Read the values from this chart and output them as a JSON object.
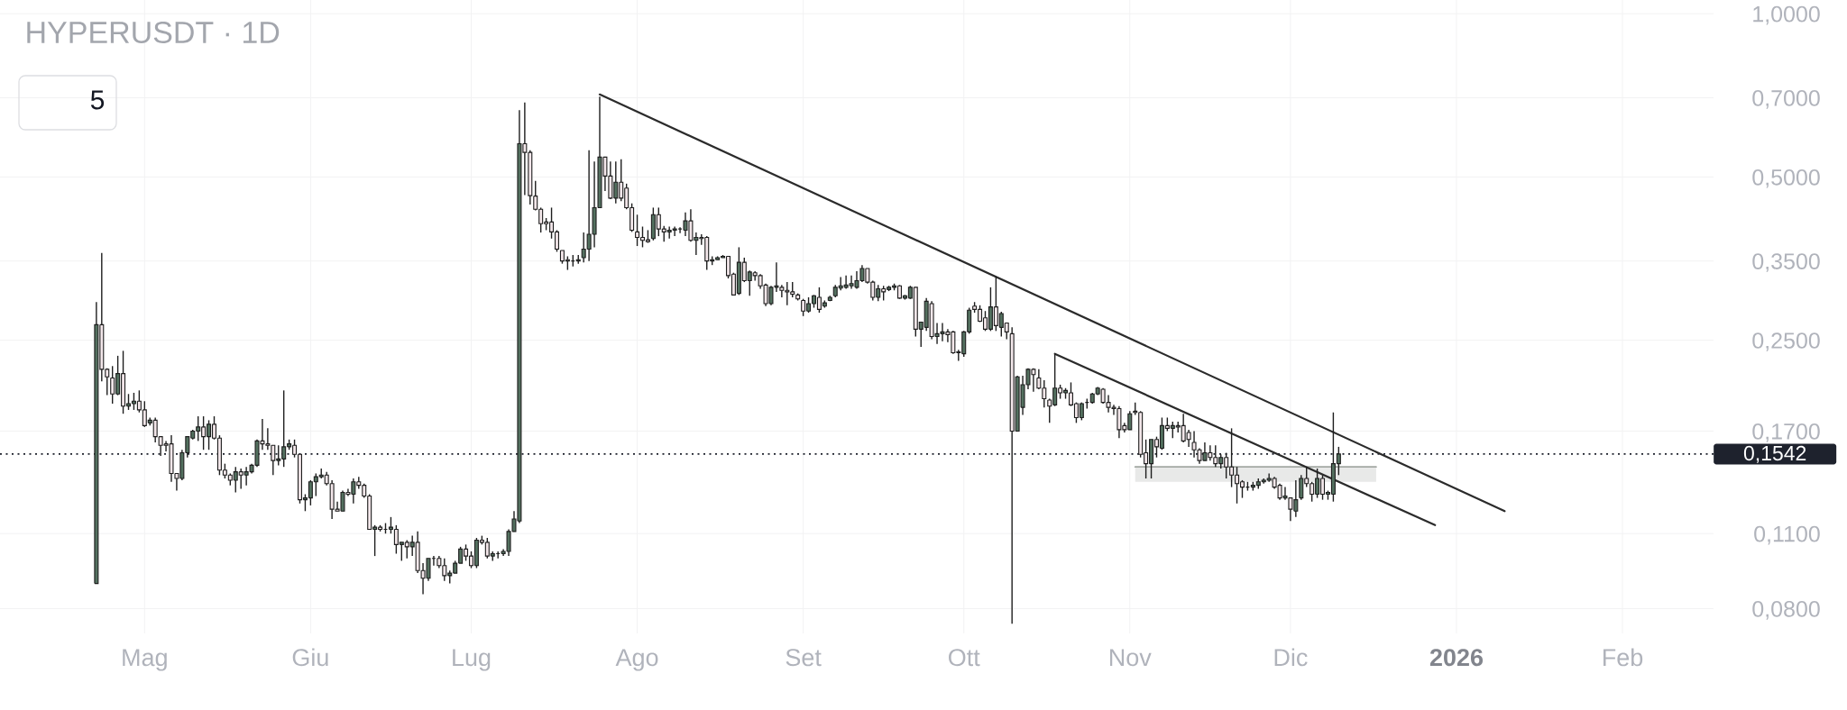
{
  "chart_data": {
    "type": "candlestick",
    "title": "HYPERUSDT · 1D",
    "annotations": [
      "5"
    ],
    "log": true,
    "grid": true,
    "xlim": [
      "2025-04-04",
      "2026-02-18"
    ],
    "ylim": [
      0.072,
      1.06
    ],
    "xticks": [
      {
        "value": "2025-05-01",
        "label": "Mag"
      },
      {
        "value": "2025-06-01",
        "label": "Giu"
      },
      {
        "value": "2025-07-01",
        "label": "Lug"
      },
      {
        "value": "2025-08-01",
        "label": "Ago"
      },
      {
        "value": "2025-09-01",
        "label": "Set"
      },
      {
        "value": "2025-10-01",
        "label": "Ott"
      },
      {
        "value": "2025-11-01",
        "label": "Nov"
      },
      {
        "value": "2025-12-01",
        "label": "Dic"
      },
      {
        "value": "2026-01-01",
        "label": "2026"
      },
      {
        "value": "2026-02-01",
        "label": "Feb"
      }
    ],
    "yticks": [
      {
        "value": 0.08,
        "label": "0,0800"
      },
      {
        "value": 0.11,
        "label": "0,1100"
      },
      {
        "value": 0.17,
        "label": "0,1700"
      },
      {
        "value": 0.25,
        "label": "0,2500"
      },
      {
        "value": 0.35,
        "label": "0,3500"
      },
      {
        "value": 0.5,
        "label": "0,5000"
      },
      {
        "value": 0.7,
        "label": "0,7000"
      },
      {
        "value": 1.0,
        "label": "1,0000"
      }
    ],
    "ref_lines": [
      {
        "axis": "y",
        "value": 0.1542,
        "label": "0,1542",
        "color": "#1e222d",
        "line_style": "dotted"
      }
    ],
    "series": [
      {
        "color": "#1e1e1e",
        "x": [
          "2025-04-22",
          "2025-04-23",
          "2025-04-24",
          "2025-04-25",
          "2025-04-26",
          "2025-04-27",
          "2025-04-28",
          "2025-04-29",
          "2025-04-30",
          "2025-05-01",
          "2025-05-02",
          "2025-05-03",
          "2025-05-04",
          "2025-05-05",
          "2025-05-06",
          "2025-05-07",
          "2025-05-08",
          "2025-05-09",
          "2025-05-10",
          "2025-05-11",
          "2025-05-12",
          "2025-05-13",
          "2025-05-14",
          "2025-05-15",
          "2025-05-16",
          "2025-05-17",
          "2025-05-18",
          "2025-05-19",
          "2025-05-20",
          "2025-05-21",
          "2025-05-22",
          "2025-05-23",
          "2025-05-24",
          "2025-05-25",
          "2025-05-26",
          "2025-05-27",
          "2025-05-28",
          "2025-05-29",
          "2025-05-30",
          "2025-05-31",
          "2025-06-01",
          "2025-06-02",
          "2025-06-03",
          "2025-06-04",
          "2025-06-05",
          "2025-06-06",
          "2025-06-07",
          "2025-06-08",
          "2025-06-09",
          "2025-06-10",
          "2025-06-11",
          "2025-06-12",
          "2025-06-13",
          "2025-06-14",
          "2025-06-15",
          "2025-06-16",
          "2025-06-17",
          "2025-06-18",
          "2025-06-19",
          "2025-06-20",
          "2025-06-21",
          "2025-06-22",
          "2025-06-23",
          "2025-06-24",
          "2025-06-25",
          "2025-06-26",
          "2025-06-27",
          "2025-06-28",
          "2025-06-29",
          "2025-06-30",
          "2025-07-01",
          "2025-07-02",
          "2025-07-03",
          "2025-07-04",
          "2025-07-05",
          "2025-07-06",
          "2025-07-07",
          "2025-07-08",
          "2025-07-09",
          "2025-07-10",
          "2025-07-11",
          "2025-07-12",
          "2025-07-13",
          "2025-07-14",
          "2025-07-15",
          "2025-07-16",
          "2025-07-17",
          "2025-07-18",
          "2025-07-19",
          "2025-07-20",
          "2025-07-21",
          "2025-07-22",
          "2025-07-23",
          "2025-07-24",
          "2025-07-25",
          "2025-07-26",
          "2025-07-27",
          "2025-07-28",
          "2025-07-29",
          "2025-07-30",
          "2025-07-31",
          "2025-08-01",
          "2025-08-02",
          "2025-08-03",
          "2025-08-04",
          "2025-08-05",
          "2025-08-06",
          "2025-08-07",
          "2025-08-08",
          "2025-08-09",
          "2025-08-10",
          "2025-08-11",
          "2025-08-12",
          "2025-08-13",
          "2025-08-14",
          "2025-08-15",
          "2025-08-16",
          "2025-08-17",
          "2025-08-18",
          "2025-08-19",
          "2025-08-20",
          "2025-08-21",
          "2025-08-22",
          "2025-08-23",
          "2025-08-24",
          "2025-08-25",
          "2025-08-26",
          "2025-08-27",
          "2025-08-28",
          "2025-08-29",
          "2025-08-30",
          "2025-08-31",
          "2025-09-01",
          "2025-09-02",
          "2025-09-03",
          "2025-09-04",
          "2025-09-05",
          "2025-09-06",
          "2025-09-07",
          "2025-09-08",
          "2025-09-09",
          "2025-09-10",
          "2025-09-11",
          "2025-09-12",
          "2025-09-13",
          "2025-09-14",
          "2025-09-15",
          "2025-09-16",
          "2025-09-17",
          "2025-09-18",
          "2025-09-19",
          "2025-09-20",
          "2025-09-21",
          "2025-09-22",
          "2025-09-23",
          "2025-09-24",
          "2025-09-25",
          "2025-09-26",
          "2025-09-27",
          "2025-09-28",
          "2025-09-29",
          "2025-09-30",
          "2025-10-01",
          "2025-10-02",
          "2025-10-03",
          "2025-10-04",
          "2025-10-05",
          "2025-10-06",
          "2025-10-07",
          "2025-10-08",
          "2025-10-09",
          "2025-10-10",
          "2025-10-11",
          "2025-10-12",
          "2025-10-13",
          "2025-10-14",
          "2025-10-15",
          "2025-10-16",
          "2025-10-17",
          "2025-10-18",
          "2025-10-19",
          "2025-10-20",
          "2025-10-21",
          "2025-10-22",
          "2025-10-23",
          "2025-10-24",
          "2025-10-25",
          "2025-10-26",
          "2025-10-27",
          "2025-10-28",
          "2025-10-29",
          "2025-10-30",
          "2025-10-31",
          "2025-11-01",
          "2025-11-02",
          "2025-11-03",
          "2025-11-04",
          "2025-11-05",
          "2025-11-06",
          "2025-11-07",
          "2025-11-08",
          "2025-11-09",
          "2025-11-10",
          "2025-11-11",
          "2025-11-12",
          "2025-11-13",
          "2025-11-14",
          "2025-11-15",
          "2025-11-16",
          "2025-11-17",
          "2025-11-18",
          "2025-11-19",
          "2025-11-20",
          "2025-11-21",
          "2025-11-22",
          "2025-11-23",
          "2025-11-24",
          "2025-11-25",
          "2025-11-26",
          "2025-11-27",
          "2025-11-28",
          "2025-11-29",
          "2025-11-30",
          "2025-12-01",
          "2025-12-02",
          "2025-12-03",
          "2025-12-04",
          "2025-12-05",
          "2025-12-06",
          "2025-12-07",
          "2025-12-08",
          "2025-12-09",
          "2025-12-10"
        ],
        "ohlc": [
          [
            0.089,
            0.294,
            0.089,
            0.267
          ],
          [
            0.267,
            0.362,
            0.21,
            0.221
          ],
          [
            0.221,
            0.222,
            0.198,
            0.214
          ],
          [
            0.213,
            0.224,
            0.191,
            0.199
          ],
          [
            0.199,
            0.234,
            0.198,
            0.217
          ],
          [
            0.217,
            0.239,
            0.183,
            0.189
          ],
          [
            0.189,
            0.199,
            0.186,
            0.191
          ],
          [
            0.191,
            0.2,
            0.186,
            0.193
          ],
          [
            0.193,
            0.202,
            0.184,
            0.186
          ],
          [
            0.186,
            0.193,
            0.173,
            0.174
          ],
          [
            0.176,
            0.18,
            0.174,
            0.178
          ],
          [
            0.178,
            0.18,
            0.162,
            0.166
          ],
          [
            0.166,
            0.166,
            0.153,
            0.16
          ],
          [
            0.161,
            0.163,
            0.156,
            0.16
          ],
          [
            0.161,
            0.167,
            0.137,
            0.142
          ],
          [
            0.142,
            0.142,
            0.132,
            0.139
          ],
          [
            0.139,
            0.157,
            0.138,
            0.155
          ],
          [
            0.155,
            0.166,
            0.152,
            0.166
          ],
          [
            0.165,
            0.171,
            0.164,
            0.17
          ],
          [
            0.17,
            0.181,
            0.163,
            0.173
          ],
          [
            0.173,
            0.181,
            0.157,
            0.166
          ],
          [
            0.166,
            0.178,
            0.157,
            0.175
          ],
          [
            0.175,
            0.181,
            0.164,
            0.165
          ],
          [
            0.165,
            0.167,
            0.141,
            0.144
          ],
          [
            0.144,
            0.148,
            0.139,
            0.141
          ],
          [
            0.141,
            0.142,
            0.135,
            0.138
          ],
          [
            0.138,
            0.146,
            0.131,
            0.143
          ],
          [
            0.143,
            0.145,
            0.133,
            0.141
          ],
          [
            0.141,
            0.146,
            0.135,
            0.143
          ],
          [
            0.143,
            0.148,
            0.142,
            0.147
          ],
          [
            0.147,
            0.164,
            0.146,
            0.163
          ],
          [
            0.163,
            0.179,
            0.157,
            0.161
          ],
          [
            0.161,
            0.172,
            0.157,
            0.16
          ],
          [
            0.16,
            0.16,
            0.141,
            0.15
          ],
          [
            0.15,
            0.16,
            0.147,
            0.151
          ],
          [
            0.151,
            0.202,
            0.146,
            0.159
          ],
          [
            0.159,
            0.164,
            0.157,
            0.161
          ],
          [
            0.16,
            0.164,
            0.152,
            0.154
          ],
          [
            0.154,
            0.154,
            0.125,
            0.127
          ],
          [
            0.127,
            0.13,
            0.121,
            0.128
          ],
          [
            0.128,
            0.138,
            0.124,
            0.137
          ],
          [
            0.137,
            0.142,
            0.129,
            0.14
          ],
          [
            0.14,
            0.145,
            0.139,
            0.141
          ],
          [
            0.141,
            0.143,
            0.135,
            0.136
          ],
          [
            0.136,
            0.138,
            0.117,
            0.122
          ],
          [
            0.122,
            0.126,
            0.121,
            0.121
          ],
          [
            0.121,
            0.132,
            0.121,
            0.131
          ],
          [
            0.131,
            0.133,
            0.129,
            0.13
          ],
          [
            0.13,
            0.139,
            0.125,
            0.137
          ],
          [
            0.137,
            0.14,
            0.133,
            0.135
          ],
          [
            0.135,
            0.136,
            0.128,
            0.129
          ],
          [
            0.129,
            0.13,
            0.112,
            0.112
          ],
          [
            0.112,
            0.114,
            0.1,
            0.113
          ],
          [
            0.113,
            0.114,
            0.111,
            0.112
          ],
          [
            0.112,
            0.115,
            0.11,
            0.112
          ],
          [
            0.112,
            0.118,
            0.11,
            0.113
          ],
          [
            0.112,
            0.114,
            0.101,
            0.105
          ],
          [
            0.105,
            0.106,
            0.098,
            0.106
          ],
          [
            0.106,
            0.107,
            0.099,
            0.104
          ],
          [
            0.104,
            0.109,
            0.1,
            0.106
          ],
          [
            0.106,
            0.111,
            0.093,
            0.094
          ],
          [
            0.094,
            0.097,
            0.085,
            0.091
          ],
          [
            0.091,
            0.099,
            0.09,
            0.099
          ],
          [
            0.099,
            0.1,
            0.096,
            0.099
          ],
          [
            0.099,
            0.1,
            0.095,
            0.096
          ],
          [
            0.096,
            0.099,
            0.09,
            0.092
          ],
          [
            0.092,
            0.094,
            0.089,
            0.093
          ],
          [
            0.093,
            0.098,
            0.093,
            0.097
          ],
          [
            0.097,
            0.104,
            0.097,
            0.103
          ],
          [
            0.103,
            0.105,
            0.098,
            0.1
          ],
          [
            0.1,
            0.102,
            0.095,
            0.096
          ],
          [
            0.096,
            0.108,
            0.095,
            0.107
          ],
          [
            0.107,
            0.109,
            0.105,
            0.106
          ],
          [
            0.106,
            0.108,
            0.099,
            0.1
          ],
          [
            0.1,
            0.102,
            0.098,
            0.101
          ],
          [
            0.101,
            0.102,
            0.099,
            0.101
          ],
          [
            0.101,
            0.103,
            0.1,
            0.102
          ],
          [
            0.102,
            0.112,
            0.1,
            0.111
          ],
          [
            0.111,
            0.121,
            0.111,
            0.117
          ],
          [
            0.116,
            0.664,
            0.115,
            0.576
          ],
          [
            0.576,
            0.686,
            0.463,
            0.555
          ],
          [
            0.555,
            0.56,
            0.445,
            0.462
          ],
          [
            0.461,
            0.492,
            0.434,
            0.436
          ],
          [
            0.436,
            0.439,
            0.395,
            0.41
          ],
          [
            0.413,
            0.42,
            0.399,
            0.41
          ],
          [
            0.413,
            0.439,
            0.385,
            0.396
          ],
          [
            0.396,
            0.399,
            0.364,
            0.368
          ],
          [
            0.366,
            0.366,
            0.346,
            0.35
          ],
          [
            0.352,
            0.357,
            0.337,
            0.35
          ],
          [
            0.35,
            0.359,
            0.342,
            0.35
          ],
          [
            0.35,
            0.359,
            0.346,
            0.352
          ],
          [
            0.355,
            0.395,
            0.348,
            0.368
          ],
          [
            0.368,
            0.56,
            0.35,
            0.392
          ],
          [
            0.392,
            0.534,
            0.371,
            0.439
          ],
          [
            0.439,
            0.703,
            0.439,
            0.544
          ],
          [
            0.544,
            0.544,
            0.471,
            0.502
          ],
          [
            0.502,
            0.534,
            0.455,
            0.457
          ],
          [
            0.457,
            0.534,
            0.447,
            0.489
          ],
          [
            0.489,
            0.539,
            0.451,
            0.457
          ],
          [
            0.477,
            0.486,
            0.436,
            0.439
          ],
          [
            0.439,
            0.447,
            0.396,
            0.399
          ],
          [
            0.396,
            0.426,
            0.373,
            0.387
          ],
          [
            0.387,
            0.405,
            0.371,
            0.382
          ],
          [
            0.383,
            0.399,
            0.378,
            0.38
          ],
          [
            0.385,
            0.439,
            0.382,
            0.426
          ],
          [
            0.426,
            0.439,
            0.389,
            0.401
          ],
          [
            0.401,
            0.406,
            0.38,
            0.396
          ],
          [
            0.396,
            0.405,
            0.385,
            0.399
          ],
          [
            0.399,
            0.405,
            0.389,
            0.401
          ],
          [
            0.401,
            0.404,
            0.394,
            0.401
          ],
          [
            0.399,
            0.43,
            0.389,
            0.415
          ],
          [
            0.415,
            0.436,
            0.38,
            0.382
          ],
          [
            0.382,
            0.395,
            0.359,
            0.387
          ],
          [
            0.387,
            0.392,
            0.375,
            0.385
          ],
          [
            0.387,
            0.389,
            0.337,
            0.35
          ],
          [
            0.35,
            0.357,
            0.344,
            0.352
          ],
          [
            0.352,
            0.357,
            0.352,
            0.355
          ],
          [
            0.355,
            0.359,
            0.355,
            0.357
          ],
          [
            0.357,
            0.357,
            0.325,
            0.329
          ],
          [
            0.331,
            0.333,
            0.303,
            0.303
          ],
          [
            0.305,
            0.371,
            0.303,
            0.348
          ],
          [
            0.348,
            0.355,
            0.32,
            0.322
          ],
          [
            0.322,
            0.336,
            0.302,
            0.334
          ],
          [
            0.333,
            0.335,
            0.322,
            0.329
          ],
          [
            0.329,
            0.331,
            0.311,
            0.315
          ],
          [
            0.316,
            0.318,
            0.289,
            0.292
          ],
          [
            0.292,
            0.315,
            0.29,
            0.313
          ],
          [
            0.313,
            0.348,
            0.307,
            0.315
          ],
          [
            0.313,
            0.316,
            0.3,
            0.309
          ],
          [
            0.309,
            0.32,
            0.29,
            0.307
          ],
          [
            0.307,
            0.32,
            0.3,
            0.304
          ],
          [
            0.303,
            0.305,
            0.296,
            0.298
          ],
          [
            0.296,
            0.298,
            0.277,
            0.283
          ],
          [
            0.283,
            0.3,
            0.281,
            0.292
          ],
          [
            0.292,
            0.303,
            0.287,
            0.302
          ],
          [
            0.3,
            0.313,
            0.281,
            0.285
          ],
          [
            0.289,
            0.296,
            0.287,
            0.293
          ],
          [
            0.296,
            0.302,
            0.295,
            0.3
          ],
          [
            0.302,
            0.316,
            0.3,
            0.313
          ],
          [
            0.312,
            0.327,
            0.309,
            0.315
          ],
          [
            0.313,
            0.329,
            0.311,
            0.316
          ],
          [
            0.315,
            0.329,
            0.311,
            0.318
          ],
          [
            0.313,
            0.335,
            0.311,
            0.322
          ],
          [
            0.322,
            0.344,
            0.32,
            0.339
          ],
          [
            0.339,
            0.339,
            0.318,
            0.32
          ],
          [
            0.32,
            0.322,
            0.296,
            0.3
          ],
          [
            0.3,
            0.316,
            0.295,
            0.311
          ],
          [
            0.311,
            0.315,
            0.296,
            0.307
          ],
          [
            0.31,
            0.315,
            0.308,
            0.313
          ],
          [
            0.313,
            0.318,
            0.309,
            0.315
          ],
          [
            0.315,
            0.316,
            0.298,
            0.299
          ],
          [
            0.299,
            0.303,
            0.297,
            0.302
          ],
          [
            0.299,
            0.315,
            0.298,
            0.313
          ],
          [
            0.313,
            0.313,
            0.254,
            0.262
          ],
          [
            0.262,
            0.27,
            0.243,
            0.27
          ],
          [
            0.264,
            0.299,
            0.26,
            0.295
          ],
          [
            0.292,
            0.295,
            0.251,
            0.254
          ],
          [
            0.254,
            0.269,
            0.246,
            0.257
          ],
          [
            0.257,
            0.269,
            0.249,
            0.259
          ],
          [
            0.259,
            0.262,
            0.248,
            0.256
          ],
          [
            0.259,
            0.26,
            0.236,
            0.237
          ],
          [
            0.237,
            0.24,
            0.229,
            0.238
          ],
          [
            0.236,
            0.26,
            0.233,
            0.259
          ],
          [
            0.259,
            0.287,
            0.257,
            0.284
          ],
          [
            0.289,
            0.294,
            0.281,
            0.285
          ],
          [
            0.285,
            0.29,
            0.27,
            0.271
          ],
          [
            0.275,
            0.283,
            0.26,
            0.262
          ],
          [
            0.262,
            0.313,
            0.26,
            0.288
          ],
          [
            0.288,
            0.328,
            0.26,
            0.266
          ],
          [
            0.264,
            0.282,
            0.254,
            0.28
          ],
          [
            0.269,
            0.269,
            0.251,
            0.259
          ],
          [
            0.257,
            0.264,
            0.075,
            0.17
          ],
          [
            0.17,
            0.215,
            0.17,
            0.214
          ],
          [
            0.188,
            0.215,
            0.182,
            0.207
          ],
          [
            0.207,
            0.222,
            0.203,
            0.221
          ],
          [
            0.221,
            0.222,
            0.201,
            0.216
          ],
          [
            0.213,
            0.221,
            0.203,
            0.204
          ],
          [
            0.204,
            0.211,
            0.188,
            0.195
          ],
          [
            0.194,
            0.195,
            0.176,
            0.189
          ],
          [
            0.19,
            0.236,
            0.189,
            0.204
          ],
          [
            0.204,
            0.207,
            0.195,
            0.2
          ],
          [
            0.2,
            0.204,
            0.195,
            0.202
          ],
          [
            0.2,
            0.209,
            0.189,
            0.19
          ],
          [
            0.191,
            0.192,
            0.176,
            0.18
          ],
          [
            0.18,
            0.192,
            0.178,
            0.191
          ],
          [
            0.192,
            0.195,
            0.187,
            0.192
          ],
          [
            0.192,
            0.2,
            0.191,
            0.199
          ],
          [
            0.199,
            0.205,
            0.198,
            0.204
          ],
          [
            0.203,
            0.204,
            0.191,
            0.192
          ],
          [
            0.192,
            0.198,
            0.184,
            0.188
          ],
          [
            0.188,
            0.19,
            0.182,
            0.187
          ],
          [
            0.187,
            0.189,
            0.165,
            0.171
          ],
          [
            0.174,
            0.176,
            0.169,
            0.171
          ],
          [
            0.171,
            0.185,
            0.171,
            0.183
          ],
          [
            0.185,
            0.192,
            0.182,
            0.184
          ],
          [
            0.184,
            0.185,
            0.152,
            0.154
          ],
          [
            0.155,
            0.164,
            0.139,
            0.148
          ],
          [
            0.148,
            0.164,
            0.139,
            0.164
          ],
          [
            0.164,
            0.166,
            0.152,
            0.159
          ],
          [
            0.158,
            0.18,
            0.157,
            0.174
          ],
          [
            0.174,
            0.18,
            0.17,
            0.172
          ],
          [
            0.172,
            0.177,
            0.165,
            0.174
          ],
          [
            0.174,
            0.177,
            0.169,
            0.173
          ],
          [
            0.174,
            0.183,
            0.162,
            0.163
          ],
          [
            0.169,
            0.171,
            0.159,
            0.164
          ],
          [
            0.162,
            0.17,
            0.152,
            0.157
          ],
          [
            0.157,
            0.158,
            0.148,
            0.15
          ],
          [
            0.15,
            0.162,
            0.15,
            0.155
          ],
          [
            0.155,
            0.16,
            0.15,
            0.152
          ],
          [
            0.152,
            0.16,
            0.146,
            0.148
          ],
          [
            0.148,
            0.154,
            0.145,
            0.152
          ],
          [
            0.152,
            0.155,
            0.139,
            0.146
          ],
          [
            0.146,
            0.172,
            0.134,
            0.141
          ],
          [
            0.141,
            0.146,
            0.125,
            0.136
          ],
          [
            0.137,
            0.138,
            0.128,
            0.134
          ],
          [
            0.134,
            0.137,
            0.132,
            0.134
          ],
          [
            0.134,
            0.137,
            0.132,
            0.135
          ],
          [
            0.135,
            0.139,
            0.133,
            0.137
          ],
          [
            0.137,
            0.139,
            0.136,
            0.138
          ],
          [
            0.138,
            0.142,
            0.137,
            0.139
          ],
          [
            0.139,
            0.14,
            0.133,
            0.134
          ],
          [
            0.135,
            0.136,
            0.127,
            0.128
          ],
          [
            0.128,
            0.134,
            0.127,
            0.129
          ],
          [
            0.128,
            0.128,
            0.116,
            0.122
          ],
          [
            0.121,
            0.138,
            0.118,
            0.127
          ],
          [
            0.128,
            0.141,
            0.127,
            0.139
          ],
          [
            0.139,
            0.146,
            0.134,
            0.136
          ],
          [
            0.136,
            0.137,
            0.126,
            0.13
          ],
          [
            0.13,
            0.145,
            0.128,
            0.139
          ],
          [
            0.139,
            0.141,
            0.127,
            0.13
          ],
          [
            0.13,
            0.132,
            0.127,
            0.131
          ],
          [
            0.13,
            0.184,
            0.126,
            0.148
          ],
          [
            0.148,
            0.159,
            0.141,
            0.1542
          ]
        ],
        "colors": [
          "#53705f",
          "#f3e7ea",
          "#f3e7ea",
          "#f3e7ea",
          "#53705f",
          "#f3e7ea",
          "#53705f",
          "#53705f",
          "#f3e7ea",
          "#f3e7ea",
          "#53705f",
          "#f3e7ea",
          "#f3e7ea",
          "#f3e7ea",
          "#f3e7ea",
          "#f3e7ea",
          "#53705f",
          "#53705f",
          "#53705f",
          "#53705f",
          "#f3e7ea",
          "#53705f",
          "#f3e7ea",
          "#f3e7ea",
          "#f3e7ea",
          "#f3e7ea",
          "#53705f",
          "#f3e7ea",
          "#53705f",
          "#53705f",
          "#53705f",
          "#f3e7ea",
          "#f3e7ea",
          "#f3e7ea",
          "#53705f",
          "#53705f",
          "#53705f",
          "#f3e7ea",
          "#f3e7ea",
          "#53705f",
          "#53705f",
          "#53705f",
          "#53705f",
          "#f3e7ea",
          "#f3e7ea",
          "#f3e7ea",
          "#53705f",
          "#f3e7ea",
          "#53705f",
          "#f3e7ea",
          "#f3e7ea",
          "#f3e7ea",
          "#53705f",
          "#f3e7ea",
          "#1e1e1e",
          "#53705f",
          "#f3e7ea",
          "#53705f",
          "#f3e7ea",
          "#53705f",
          "#f3e7ea",
          "#f3e7ea",
          "#53705f",
          "#1e1e1e",
          "#f3e7ea",
          "#f3e7ea",
          "#53705f",
          "#53705f",
          "#53705f",
          "#f3e7ea",
          "#f3e7ea",
          "#53705f",
          "#f3e7ea",
          "#f3e7ea",
          "#53705f",
          "#1e1e1e",
          "#53705f",
          "#53705f",
          "#53705f",
          "#53705f",
          "#f3e7ea",
          "#f3e7ea",
          "#f3e7ea",
          "#f3e7ea",
          "#f3e7ea",
          "#f3e7ea",
          "#f3e7ea",
          "#f3e7ea",
          "#f3e7ea",
          "#1e1e1e",
          "#53705f",
          "#53705f",
          "#53705f",
          "#53705f",
          "#53705f",
          "#f3e7ea",
          "#f3e7ea",
          "#53705f",
          "#f3e7ea",
          "#f3e7ea",
          "#f3e7ea",
          "#f3e7ea",
          "#f3e7ea",
          "#f3e7ea",
          "#53705f",
          "#f3e7ea",
          "#f3e7ea",
          "#53705f",
          "#53705f",
          "#1e1e1e",
          "#53705f",
          "#f3e7ea",
          "#53705f",
          "#f3e7ea",
          "#f3e7ea",
          "#53705f",
          "#53705f",
          "#53705f",
          "#f3e7ea",
          "#f3e7ea",
          "#53705f",
          "#f3e7ea",
          "#53705f",
          "#f3e7ea",
          "#f3e7ea",
          "#f3e7ea",
          "#53705f",
          "#53705f",
          "#f3e7ea",
          "#f3e7ea",
          "#f3e7ea",
          "#f3e7ea",
          "#f3e7ea",
          "#53705f",
          "#53705f",
          "#f3e7ea",
          "#53705f",
          "#53705f",
          "#53705f",
          "#53705f",
          "#53705f",
          "#53705f",
          "#53705f",
          "#53705f",
          "#f3e7ea",
          "#f3e7ea",
          "#53705f",
          "#f3e7ea",
          "#53705f",
          "#53705f",
          "#f3e7ea",
          "#53705f",
          "#53705f",
          "#f3e7ea",
          "#53705f",
          "#53705f",
          "#f3e7ea",
          "#53705f",
          "#53705f",
          "#f3e7ea",
          "#f3e7ea",
          "#53705f",
          "#53705f",
          "#53705f",
          "#f3e7ea",
          "#f3e7ea",
          "#f3e7ea",
          "#53705f",
          "#f3e7ea",
          "#53705f",
          "#f3e7ea",
          "#f3e7ea",
          "#53705f",
          "#53705f",
          "#53705f",
          "#f3e7ea",
          "#f3e7ea",
          "#f3e7ea",
          "#f3e7ea",
          "#53705f",
          "#f3e7ea",
          "#53705f",
          "#f3e7ea",
          "#f3e7ea",
          "#53705f",
          "#1e1e1e",
          "#53705f",
          "#53705f",
          "#f3e7ea",
          "#f3e7ea",
          "#f3e7ea",
          "#f3e7ea",
          "#f3e7ea",
          "#53705f",
          "#f3e7ea",
          "#f3e7ea",
          "#f3e7ea",
          "#53705f",
          "#f3e7ea",
          "#53705f",
          "#f3e7ea",
          "#53705f",
          "#f3e7ea",
          "#f3e7ea",
          "#f3e7ea",
          "#f3e7ea",
          "#f3e7ea",
          "#53705f",
          "#f3e7ea",
          "#f3e7ea",
          "#53705f",
          "#f3e7ea",
          "#f3e7ea",
          "#f3e7ea",
          "#f3e7ea",
          "#1e1e1e",
          "#53705f",
          "#53705f",
          "#53705f",
          "#53705f",
          "#f3e7ea",
          "#f3e7ea",
          "#53705f",
          "#f3e7ea",
          "#53705f",
          "#53705f",
          "#f3e7ea",
          "#f3e7ea",
          "#53705f",
          "#f3e7ea",
          "#53705f",
          "#53705f",
          "#53705f"
        ]
      },
      {
        "type": "line",
        "x": [
          "2025-07-25",
          "2026-01-10"
        ],
        "values": [
          0.71,
          0.121
        ],
        "color": "#2b2b2b"
      },
      {
        "type": "line",
        "x": [
          "2025-10-18",
          "2025-12-28"
        ],
        "values": [
          0.236,
          0.114
        ],
        "color": "#2b2b2b"
      },
      {
        "type": "line",
        "x": [
          "2025-11-02",
          "2025-12-17"
        ],
        "values": [
          0.146,
          0.146
        ],
        "lower": [
          0.137,
          0.137
        ],
        "upper": [
          0.146,
          0.146
        ],
        "color": "#a3a8a3"
      }
    ]
  }
}
